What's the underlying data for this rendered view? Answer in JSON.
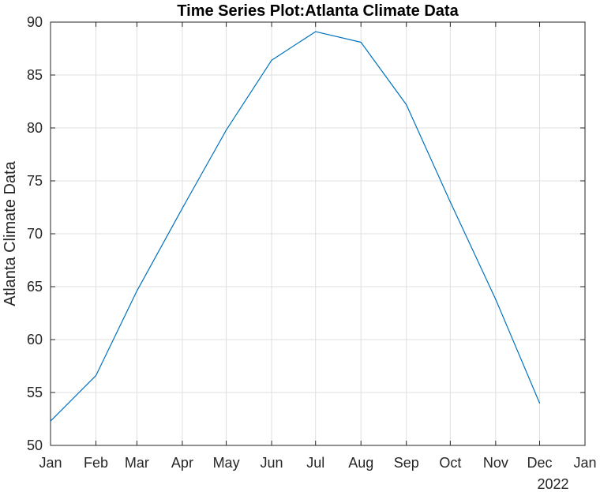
{
  "chart_data": {
    "type": "line",
    "title": "Time Series Plot:Atlanta Climate Data",
    "xlabel": "",
    "ylabel": "Atlanta Climate Data",
    "x_tick_labels": [
      "Jan",
      "Feb",
      "Mar",
      "Apr",
      "May",
      "Jun",
      "Jul",
      "Aug",
      "Sep",
      "Oct",
      "Nov",
      "Dec",
      "Jan"
    ],
    "x_secondary_label": "2022",
    "y_ticks": [
      50,
      55,
      60,
      65,
      70,
      75,
      80,
      85,
      90
    ],
    "ylim": [
      50,
      90
    ],
    "xlim": [
      "2022-01-01",
      "2023-01-01"
    ],
    "grid": true,
    "line_color": "#0072BD",
    "series": [
      {
        "x": [
          "2022-01-01",
          "2022-02-01",
          "2022-03-01",
          "2022-04-01",
          "2022-05-01",
          "2022-06-01",
          "2022-07-01",
          "2022-08-01",
          "2022-09-01",
          "2022-10-01",
          "2022-11-01",
          "2022-12-01"
        ],
        "values": [
          52.3,
          56.6,
          64.6,
          72.4,
          79.8,
          86.4,
          89.1,
          88.1,
          82.2,
          73.0,
          63.8,
          54.0
        ]
      }
    ]
  }
}
